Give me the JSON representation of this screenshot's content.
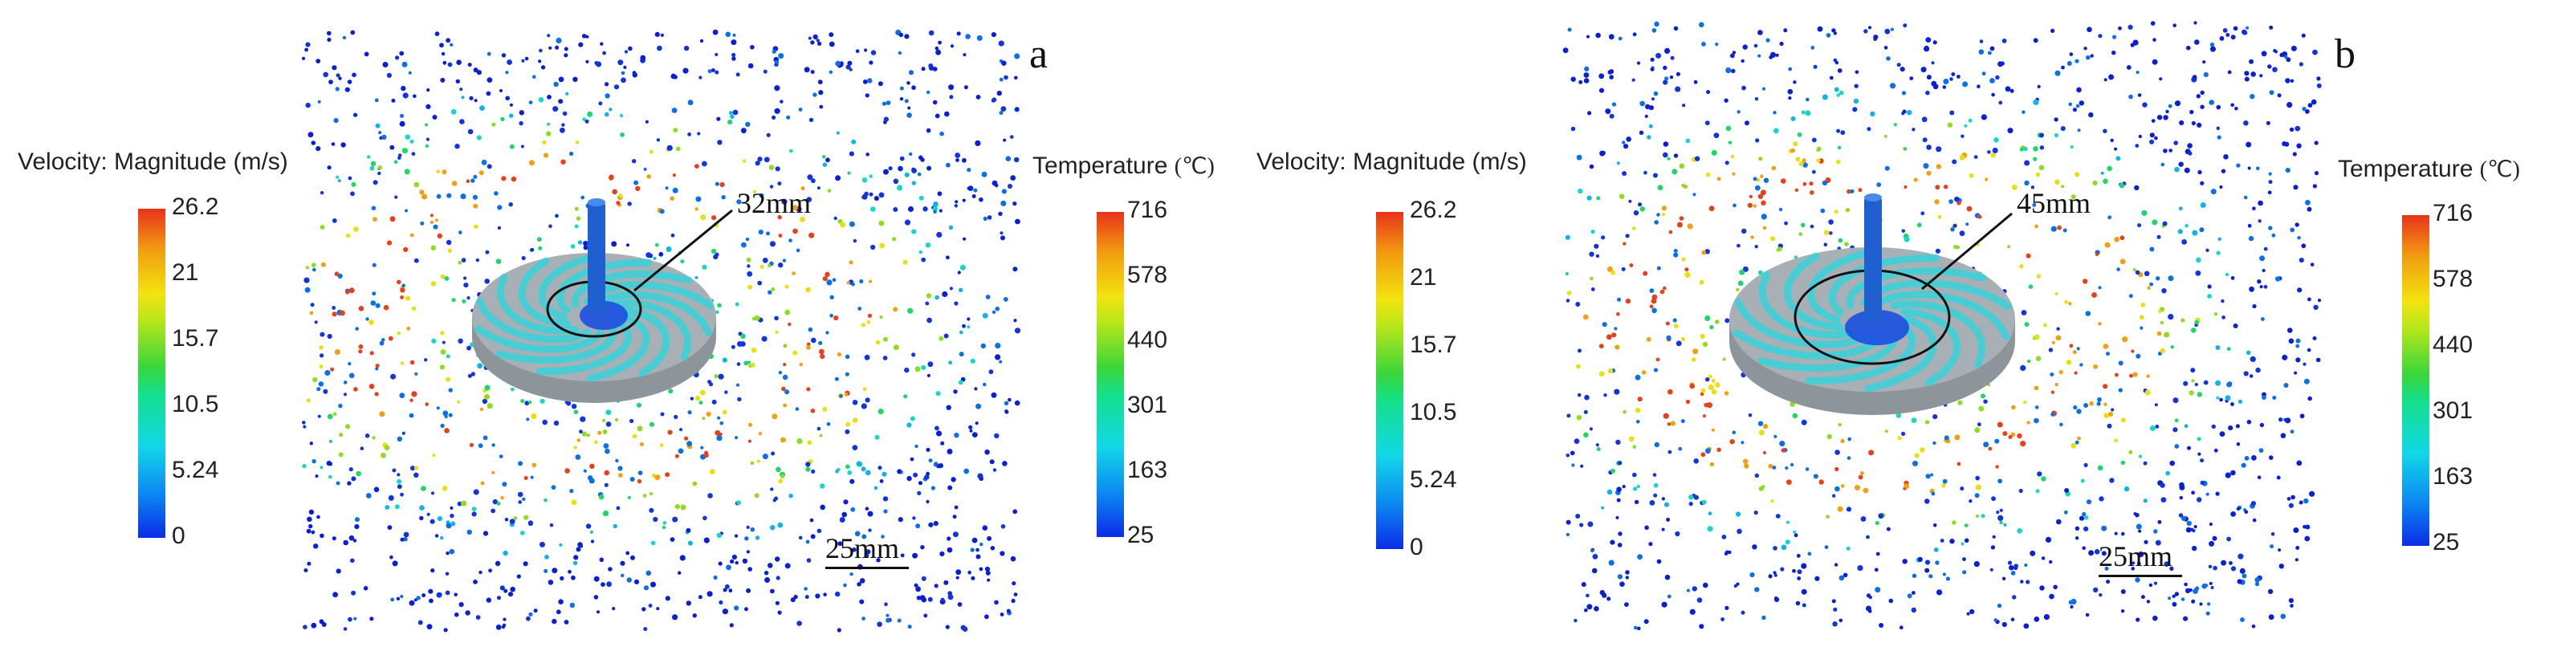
{
  "panels": [
    {
      "letter": "a",
      "velocity_title": "Velocity: Magnitude (m/s)",
      "velocity_ticks": [
        "26.2",
        "21",
        "15.7",
        "10.5",
        "5.24",
        "0"
      ],
      "temperature_title": "Temperature",
      "temperature_unit": "(℃)",
      "temperature_ticks": [
        "716",
        "578",
        "440",
        "301",
        "163",
        "25"
      ],
      "dimension_label": "32mm",
      "scale_bar_label": "25mm"
    },
    {
      "letter": "b",
      "velocity_title": "Velocity: Magnitude (m/s)",
      "velocity_ticks": [
        "26.2",
        "21",
        "15.7",
        "10.5",
        "5.24",
        "0"
      ],
      "temperature_title": "Temperature",
      "temperature_unit": "(℃)",
      "temperature_ticks": [
        "716",
        "578",
        "440",
        "301",
        "163",
        "25"
      ],
      "dimension_label": "45mm",
      "scale_bar_label": "25mm"
    }
  ],
  "colors": {
    "particle_palette": [
      "#0a1fd6",
      "#1233e0",
      "#0b6fe8",
      "#10b4e8",
      "#18d6c8",
      "#1ed66a",
      "#8fdc22",
      "#e8e012",
      "#f2a012",
      "#e8401a"
    ],
    "disk_top": "#a9b0b5",
    "disk_side": "#8e959a",
    "swirl": "#36d2d8",
    "shaft": "#1f5fd0"
  }
}
